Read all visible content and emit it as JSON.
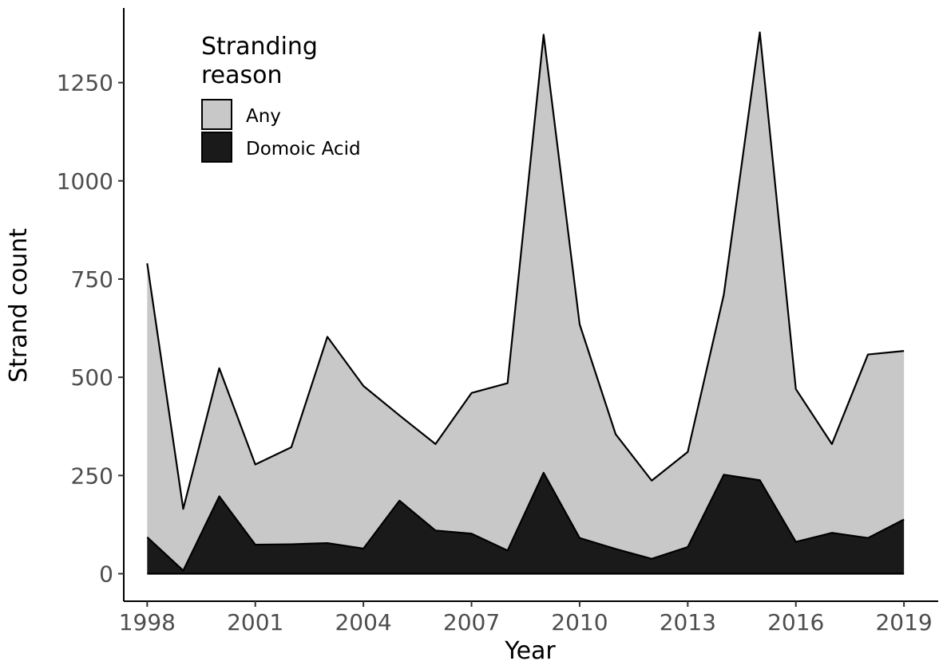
{
  "chart_data": {
    "type": "area",
    "title": "",
    "xlabel": "Year",
    "ylabel": "Strand count",
    "xlim": [
      1997.35,
      2019.95
    ],
    "ylim": [
      -70,
      1440
    ],
    "x_ticks": [
      1998,
      2001,
      2004,
      2007,
      2010,
      2013,
      2016,
      2019
    ],
    "y_ticks": [
      0,
      250,
      500,
      750,
      1000,
      1250
    ],
    "grid": false,
    "legend": {
      "title_lines": [
        "Stranding",
        "reason"
      ],
      "position": "top-left",
      "entries": [
        {
          "label": "Any",
          "color": "#c8c8c8"
        },
        {
          "label": "Domoic Acid",
          "color": "#1a1a1a"
        }
      ]
    },
    "x": [
      1998,
      1999,
      2000,
      2001,
      2002,
      2003,
      2004,
      2005,
      2006,
      2007,
      2008,
      2009,
      2010,
      2011,
      2012,
      2013,
      2014,
      2015,
      2016,
      2017,
      2018,
      2019
    ],
    "series": [
      {
        "name": "Any",
        "color": "#c8c8c8",
        "values": [
          790,
          165,
          523,
          278,
          322,
          603,
          478,
          403,
          330,
          460,
          485,
          1372,
          635,
          355,
          237,
          310,
          710,
          1378,
          470,
          330,
          558,
          567
        ]
      },
      {
        "name": "Domoic Acid",
        "color": "#1a1a1a",
        "values": [
          93,
          8,
          197,
          74,
          75,
          78,
          64,
          186,
          110,
          102,
          59,
          257,
          91,
          63,
          38,
          68,
          252,
          238,
          81,
          104,
          91,
          138
        ]
      }
    ]
  }
}
